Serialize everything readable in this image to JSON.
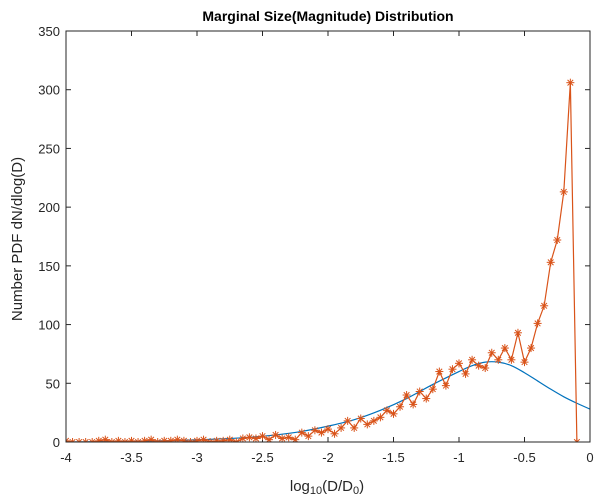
{
  "chart_data": {
    "type": "line",
    "title": "Marginal Size(Magnitude) Distribution",
    "xlabel": {
      "main": "log",
      "sub": "10",
      "middle": "(D/D",
      "sub2": "0",
      "end": ")"
    },
    "ylabel": "Number PDF dN/dlog(D)",
    "xlim": [
      -4,
      0
    ],
    "ylim": [
      0,
      350
    ],
    "xticks": [
      {
        "value": -4,
        "label": "-4"
      },
      {
        "value": -3.5,
        "label": "-3.5"
      },
      {
        "value": -3,
        "label": "-3"
      },
      {
        "value": -2.5,
        "label": "-2.5"
      },
      {
        "value": -2,
        "label": "-2"
      },
      {
        "value": -1.5,
        "label": "-1.5"
      },
      {
        "value": -1,
        "label": "-1"
      },
      {
        "value": -0.5,
        "label": "-0.5"
      },
      {
        "value": 0,
        "label": "0"
      }
    ],
    "yticks": [
      {
        "value": 0,
        "label": "0"
      },
      {
        "value": 50,
        "label": "50"
      },
      {
        "value": 100,
        "label": "100"
      },
      {
        "value": 150,
        "label": "150"
      },
      {
        "value": 200,
        "label": "200"
      },
      {
        "value": 250,
        "label": "250"
      },
      {
        "value": 300,
        "label": "300"
      },
      {
        "value": 350,
        "label": "350"
      }
    ],
    "grid": false,
    "series": [
      {
        "style": "line",
        "color": "#0072BD",
        "x": [
          -4.0,
          -3.8,
          -3.6,
          -3.4,
          -3.2,
          -3.0,
          -2.8,
          -2.6,
          -2.4,
          -2.2,
          -2.0,
          -1.8,
          -1.6,
          -1.4,
          -1.2,
          -1.0,
          -0.9,
          -0.8,
          -0.7,
          -0.6,
          -0.5,
          -0.4,
          -0.3,
          -0.2,
          -0.1,
          0.0
        ],
        "y": [
          0,
          0.2,
          0.5,
          0.8,
          1.2,
          1.8,
          2.7,
          4.0,
          6.0,
          9.0,
          13.5,
          19.0,
          27.0,
          37.0,
          49.0,
          60.0,
          65.0,
          68.0,
          68.0,
          65.0,
          59.0,
          52.0,
          45.0,
          38.5,
          33.0,
          28.0
        ]
      },
      {
        "style": "line-marker",
        "marker": "asterisk",
        "color": "#D95319",
        "x": [
          -4.0,
          -3.95,
          -3.9,
          -3.85,
          -3.8,
          -3.75,
          -3.7,
          -3.65,
          -3.6,
          -3.55,
          -3.5,
          -3.45,
          -3.4,
          -3.35,
          -3.3,
          -3.25,
          -3.2,
          -3.15,
          -3.1,
          -3.05,
          -3.0,
          -2.95,
          -2.9,
          -2.85,
          -2.8,
          -2.75,
          -2.7,
          -2.65,
          -2.6,
          -2.55,
          -2.5,
          -2.45,
          -2.4,
          -2.35,
          -2.3,
          -2.25,
          -2.2,
          -2.15,
          -2.1,
          -2.05,
          -2.0,
          -1.95,
          -1.9,
          -1.85,
          -1.8,
          -1.75,
          -1.7,
          -1.65,
          -1.6,
          -1.55,
          -1.5,
          -1.45,
          -1.4,
          -1.35,
          -1.3,
          -1.25,
          -1.2,
          -1.15,
          -1.1,
          -1.05,
          -1.0,
          -0.95,
          -0.9,
          -0.85,
          -0.8,
          -0.75,
          -0.7,
          -0.65,
          -0.6,
          -0.55,
          -0.5,
          -0.45,
          -0.4,
          -0.35,
          -0.3,
          -0.25,
          -0.2,
          -0.15
        ],
        "y": [
          1,
          0,
          0,
          0,
          0,
          1,
          2,
          0,
          1,
          0,
          1,
          0,
          1,
          2,
          0,
          1,
          1,
          2,
          1,
          0,
          1,
          2,
          0,
          1,
          1,
          2,
          0,
          3,
          4,
          3,
          5,
          2,
          6,
          3,
          4,
          2,
          8,
          5,
          10,
          8,
          11,
          7,
          12,
          18,
          12,
          20,
          15,
          18,
          21,
          27,
          24,
          30,
          40,
          32,
          43,
          37,
          45,
          60,
          48,
          62,
          67,
          58,
          70,
          65,
          63,
          76,
          70,
          80,
          70,
          93,
          68,
          80,
          101,
          116,
          153,
          172,
          213,
          306
        ]
      }
    ],
    "tail": {
      "x": [
        -0.1
      ],
      "y": [
        0
      ]
    }
  }
}
